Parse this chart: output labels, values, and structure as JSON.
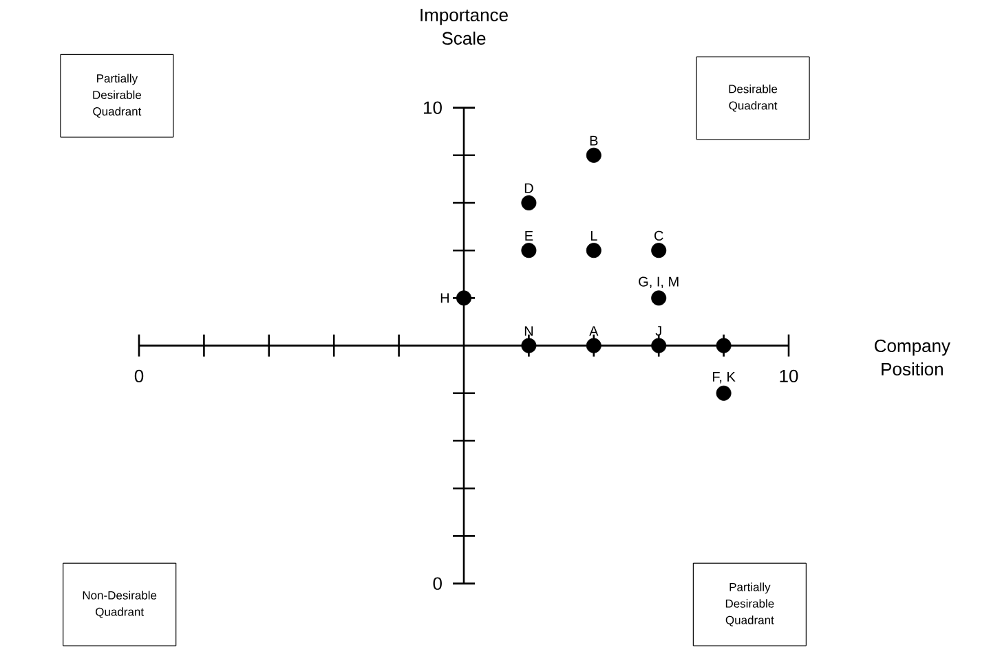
{
  "chart_data": {
    "type": "scatter",
    "xlabel": "Company Position",
    "ylabel": "Importance Scale",
    "x": [
      5,
      6,
      7,
      8,
      9,
      6,
      6,
      7,
      7,
      8,
      8,
      9
    ],
    "values": [
      6,
      5,
      5,
      5,
      5,
      8,
      7,
      9,
      7,
      7,
      6,
      4
    ],
    "color": "#000000",
    "marker": "circle",
    "xlim": [
      0,
      10
    ],
    "ylim": [
      0,
      10
    ],
    "xticks": [
      0,
      10
    ],
    "yticks": [
      0,
      10
    ],
    "annotations": [
      "Partially Desirable Quadrant",
      "Desirable Quadrant",
      "Non-Desirable Quadrant",
      "Partially Desirable Quadrant",
      {
        "text": "H",
        "x": 5,
        "y": 6
      },
      {
        "text": "N",
        "x": 6,
        "y": 5
      },
      {
        "text": "A",
        "x": 7,
        "y": 5
      },
      {
        "text": "J",
        "x": 8,
        "y": 5
      },
      {
        "text": "D",
        "x": 6,
        "y": 8
      },
      {
        "text": "E",
        "x": 6,
        "y": 7
      },
      {
        "text": "B",
        "x": 7,
        "y": 9
      },
      {
        "text": "L",
        "x": 7,
        "y": 7
      },
      {
        "text": "C",
        "x": 8,
        "y": 7
      },
      {
        "text": "G, I, M",
        "x": 8,
        "y": 6
      },
      {
        "text": "F, K",
        "x": 9,
        "y": 4
      }
    ]
  }
}
